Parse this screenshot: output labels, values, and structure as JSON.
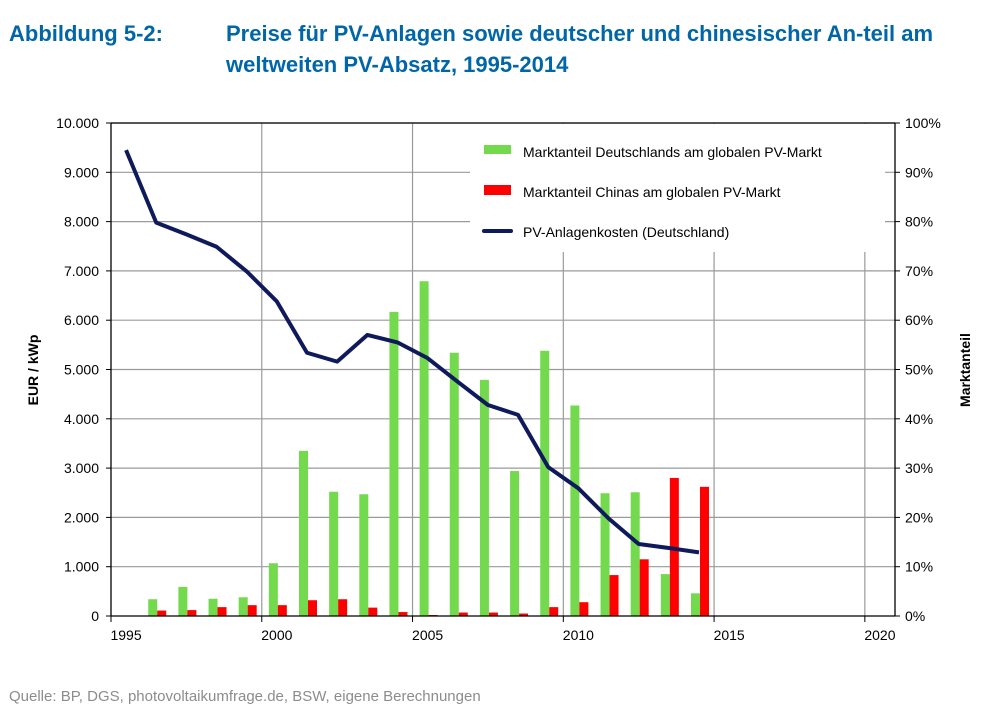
{
  "figure": {
    "number": "Abbildung 5-2:",
    "title": "Preise für PV-Anlagen sowie deutscher und chinesischer An-teil am weltweiten PV-Absatz, 1995-2014",
    "source": "Quelle: BP, DGS, photovoltaikumfrage.de, BSW, eigene Berechnungen"
  },
  "chart_data": {
    "type": "bar+line",
    "title": "",
    "xlabel": "",
    "ylabel_left": "EUR / kWp",
    "ylabel_right": "Marktanteil",
    "xlim": [
      1995,
      2021
    ],
    "ylim_left": [
      0,
      10000
    ],
    "ylim_right": [
      0,
      100
    ],
    "x_ticks": [
      "1995",
      "2000",
      "2005",
      "2010",
      "2015",
      "2020"
    ],
    "y_ticks_left": [
      "0",
      "1.000",
      "2.000",
      "3.000",
      "4.000",
      "5.000",
      "6.000",
      "7.000",
      "8.000",
      "9.000",
      "10.000"
    ],
    "y_ticks_right": [
      "0%",
      "10%",
      "20%",
      "30%",
      "40%",
      "50%",
      "60%",
      "70%",
      "80%",
      "90%",
      "100%"
    ],
    "grid": true,
    "legend_position": "top-right",
    "years": [
      1995,
      1996,
      1997,
      1998,
      1999,
      2000,
      2001,
      2002,
      2003,
      2004,
      2005,
      2006,
      2007,
      2008,
      2009,
      2010,
      2011,
      2012,
      2013,
      2014
    ],
    "series": [
      {
        "name": "Marktanteil Deutschlands am globalen PV-Markt",
        "type": "bar",
        "axis": "right",
        "unit": "%",
        "color": "#73d94d",
        "values": [
          null,
          3.4,
          5.9,
          3.5,
          3.8,
          10.7,
          33.5,
          25.2,
          24.7,
          61.7,
          67.9,
          53.4,
          47.9,
          29.4,
          53.8,
          42.7,
          24.9,
          25.1,
          8.5,
          4.6
        ]
      },
      {
        "name": "Marktanteil Chinas am globalen PV-Markt",
        "type": "bar",
        "axis": "right",
        "unit": "%",
        "color": "#ff0000",
        "values": [
          null,
          1.1,
          1.2,
          1.8,
          2.2,
          2.2,
          3.2,
          3.4,
          1.7,
          0.8,
          0.2,
          0.7,
          0.7,
          0.5,
          1.8,
          2.8,
          8.3,
          11.5,
          28.0,
          26.2
        ]
      },
      {
        "name": "PV-Anlagenkosten (Deutschland)",
        "type": "line",
        "axis": "left",
        "unit": "EUR/kWp",
        "color": "#0f1a5c",
        "values": [
          9450,
          7980,
          7740,
          7490,
          6990,
          6380,
          5340,
          5160,
          5700,
          5550,
          5230,
          4750,
          4280,
          4080,
          3020,
          2590,
          1980,
          1460,
          1380,
          1290
        ]
      }
    ]
  }
}
